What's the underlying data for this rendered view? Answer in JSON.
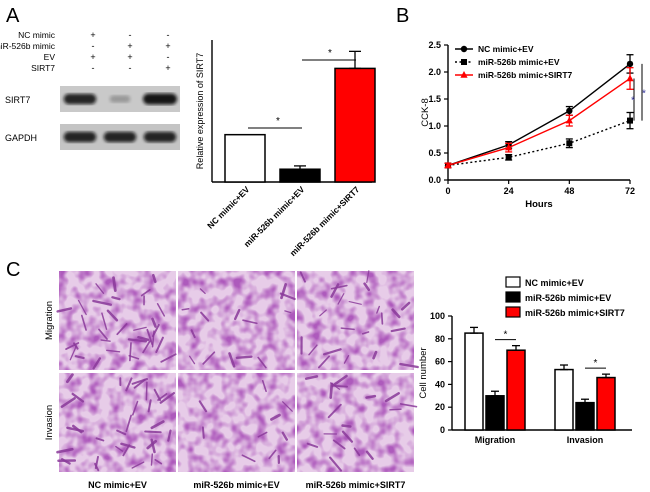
{
  "panels": {
    "a": {
      "letter": "A",
      "treatment_rows": [
        {
          "label": "NC mimic",
          "marks": [
            "+",
            "-",
            "-"
          ]
        },
        {
          "label": "miR-526b mimic",
          "marks": [
            "-",
            "+",
            "+"
          ]
        },
        {
          "label": "EV",
          "marks": [
            "+",
            "+",
            "-"
          ]
        },
        {
          "label": "SIRT7",
          "marks": [
            "-",
            "-",
            "+"
          ]
        }
      ],
      "blot_labels": [
        "SIRT7",
        "GAPDH"
      ],
      "blot_levels": {
        "SIRT7": [
          0.9,
          0.12,
          1.0
        ],
        "GAPDH": [
          0.9,
          0.9,
          0.9
        ]
      },
      "significance": [
        "*",
        "*"
      ]
    },
    "b": {
      "letter": "B",
      "significance": [
        "*",
        "*"
      ]
    },
    "c": {
      "letter": "C",
      "row_labels": [
        "Migration",
        "Invasion"
      ],
      "column_labels": [
        "NC mimic+EV",
        "miR-526b mimic+EV",
        "miR-526b mimic+SIRT7"
      ],
      "significance": [
        "*",
        "*"
      ]
    }
  },
  "chart_data": [
    {
      "id": "A-bar",
      "type": "bar",
      "categories": [
        "NC mimic+EV",
        "miR-526b mimic+EV",
        "miR-526b mimic+SIRT7"
      ],
      "values": [
        1.0,
        0.27,
        2.4
      ],
      "errors": [
        0.0,
        0.07,
        0.36
      ],
      "colors": [
        "#ffffff",
        "#000000",
        "#ff0000"
      ],
      "xlabel": "",
      "ylabel": "Relative expression of SIRT7",
      "ylim": [
        0,
        3
      ],
      "yticks": [],
      "grid": false
    },
    {
      "id": "B-line",
      "type": "line",
      "x": [
        0,
        24,
        48,
        72
      ],
      "xticks": [
        "0",
        "24",
        "48",
        "72"
      ],
      "yticks": [
        "0.0",
        "0.5",
        "1.0",
        "1.5",
        "2.0",
        "2.5"
      ],
      "series": [
        {
          "name": "NC mimic+EV",
          "values": [
            0.27,
            0.65,
            1.28,
            2.15
          ],
          "errors": [
            0.04,
            0.06,
            0.08,
            0.17
          ],
          "color": "#000000",
          "marker": "circle",
          "dash": "solid"
        },
        {
          "name": "miR-526b mimic+EV",
          "values": [
            0.27,
            0.42,
            0.68,
            1.1
          ],
          "errors": [
            0.04,
            0.05,
            0.08,
            0.15
          ],
          "color": "#000000",
          "marker": "square",
          "dash": "dotted"
        },
        {
          "name": "miR-526b mimic+SIRT7",
          "values": [
            0.27,
            0.6,
            1.1,
            1.88
          ],
          "errors": [
            0.04,
            0.08,
            0.1,
            0.2
          ],
          "color": "#ff0000",
          "marker": "triangle",
          "dash": "solid"
        }
      ],
      "xlabel": "Hours",
      "ylabel": "CCK-8",
      "ylim": [
        0,
        2.5
      ],
      "xlim": [
        0,
        72
      ],
      "legend": "top-left",
      "grid": false
    },
    {
      "id": "C-bar",
      "type": "bar",
      "categories": [
        "Migration",
        "Invasion"
      ],
      "series": [
        {
          "name": "NC mimic+EV",
          "values": [
            85,
            53
          ],
          "errors": [
            5,
            4
          ],
          "color": "#ffffff"
        },
        {
          "name": "miR-526b mimic+EV",
          "values": [
            30,
            24
          ],
          "errors": [
            4,
            3
          ],
          "color": "#000000"
        },
        {
          "name": "miR-526b mimic+SIRT7",
          "values": [
            70,
            46
          ],
          "errors": [
            4,
            3
          ],
          "color": "#ff0000"
        }
      ],
      "yticks": [
        "0",
        "20",
        "40",
        "60",
        "80",
        "100"
      ],
      "xlabel": "",
      "ylabel": "Cell number",
      "ylim": [
        0,
        100
      ],
      "legend": "top-right",
      "grid": false
    }
  ]
}
